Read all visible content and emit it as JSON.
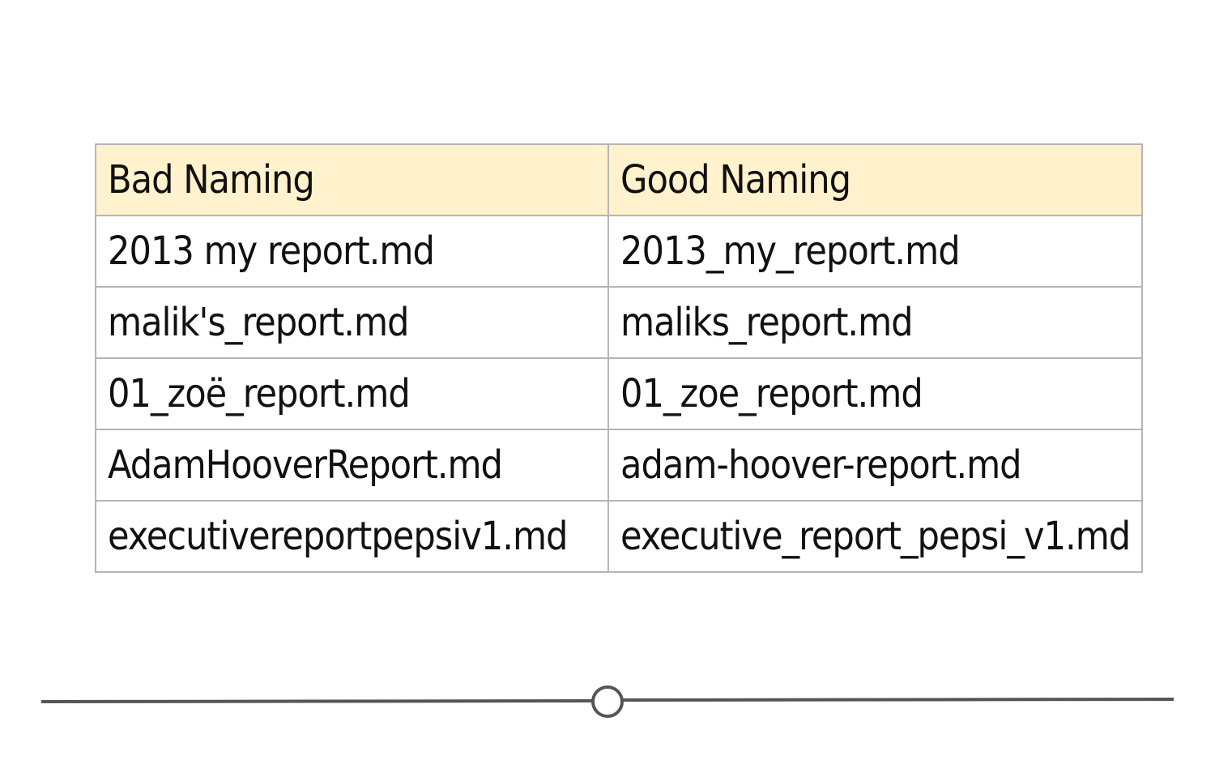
{
  "table": {
    "headers": [
      "Bad Naming",
      "Good Naming"
    ],
    "rows": [
      [
        "2013 my report.md",
        "2013_my_report.md"
      ],
      [
        "malik's_report.md",
        "maliks_report.md"
      ],
      [
        "01_zoë_report.md",
        "01_zoe_report.md"
      ],
      [
        "AdamHooverReport.md",
        "adam-hoover-report.md"
      ],
      [
        "executivereportpepsiv1.md",
        "executive_report_pepsi_v1.md"
      ]
    ],
    "header_bg": "#fff2cc",
    "border_color": "#b5b5b5"
  },
  "divider": {
    "line_color": "#555555"
  }
}
